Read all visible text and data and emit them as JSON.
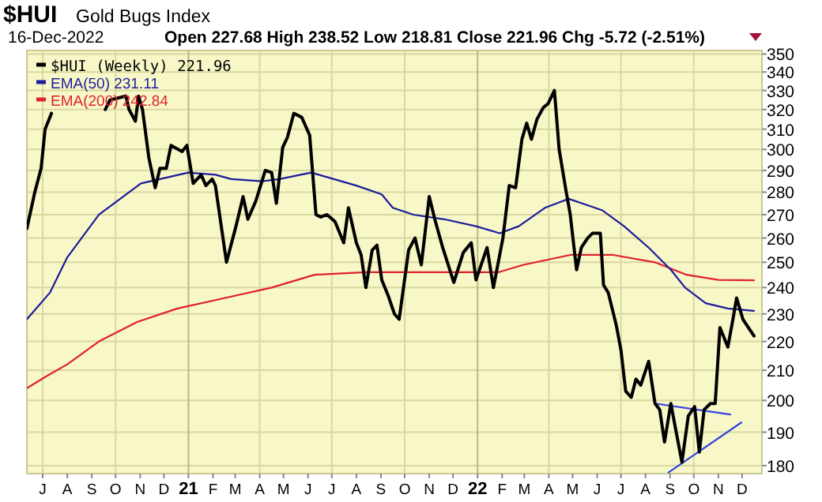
{
  "chart_data": {
    "type": "line",
    "title": "$HUI",
    "subtitle": "Gold Bugs Index",
    "annotations": [
      "16-Dec-2022",
      "Open 227.68  High 238.52  Low 218.81  Close 221.96  Chg -5.72 (-2.51%)"
    ],
    "log": "y",
    "grid": true,
    "legend": "top left",
    "xlim": [
      "2020-06-11",
      "2022-12-26"
    ],
    "ylim": [
      177.7,
      352
    ],
    "yticks": [
      180,
      190,
      200,
      210,
      220,
      230,
      240,
      250,
      260,
      270,
      280,
      290,
      300,
      310,
      320,
      330,
      340,
      350
    ],
    "xticks": [
      {
        "value": "2020-07-01",
        "label": "J"
      },
      {
        "value": "2020-08-01",
        "label": "A"
      },
      {
        "value": "2020-09-01",
        "label": "S"
      },
      {
        "value": "2020-10-01",
        "label": "O"
      },
      {
        "value": "2020-11-01",
        "label": "N"
      },
      {
        "value": "2020-12-01",
        "label": "D"
      },
      {
        "value": "2021-01-01",
        "label": "21"
      },
      {
        "value": "2021-02-01",
        "label": "F"
      },
      {
        "value": "2021-03-01",
        "label": "M"
      },
      {
        "value": "2021-04-01",
        "label": "A"
      },
      {
        "value": "2021-05-01",
        "label": "M"
      },
      {
        "value": "2021-06-01",
        "label": "J"
      },
      {
        "value": "2021-07-01",
        "label": "J"
      },
      {
        "value": "2021-08-01",
        "label": "A"
      },
      {
        "value": "2021-09-01",
        "label": "S"
      },
      {
        "value": "2021-10-01",
        "label": "O"
      },
      {
        "value": "2021-11-01",
        "label": "N"
      },
      {
        "value": "2021-12-01",
        "label": "D"
      },
      {
        "value": "2022-01-01",
        "label": "22"
      },
      {
        "value": "2022-02-01",
        "label": "F"
      },
      {
        "value": "2022-03-01",
        "label": "M"
      },
      {
        "value": "2022-04-01",
        "label": "A"
      },
      {
        "value": "2022-05-01",
        "label": "M"
      },
      {
        "value": "2022-06-01",
        "label": "J"
      },
      {
        "value": "2022-07-01",
        "label": "J"
      },
      {
        "value": "2022-08-01",
        "label": "A"
      },
      {
        "value": "2022-09-01",
        "label": "S"
      },
      {
        "value": "2022-10-01",
        "label": "O"
      },
      {
        "value": "2022-11-01",
        "label": "N"
      },
      {
        "value": "2022-12-01",
        "label": "D"
      }
    ],
    "series": [
      {
        "name": "$HUI (Weekly) 221.96",
        "color": "#000000",
        "x": [
          "2020-06-11",
          "2020-06-21",
          "2020-06-29",
          "2020-07-04",
          "2020-07-12",
          "2020-08-10",
          "2020-09-18",
          "2020-09-24",
          "2020-10-14",
          "2020-10-18",
          "2020-10-26",
          "2020-10-30",
          "2020-11-04",
          "2020-11-12",
          "2020-11-20",
          "2020-11-26",
          "2020-12-04",
          "2020-12-10",
          "2020-12-24",
          "2020-12-30",
          "2021-01-07",
          "2021-01-17",
          "2021-01-23",
          "2021-01-31",
          "2021-02-04",
          "2021-02-18",
          "2021-03-02",
          "2021-03-11",
          "2021-03-17",
          "2021-03-27",
          "2021-04-08",
          "2021-04-16",
          "2021-04-22",
          "2021-04-30",
          "2021-05-06",
          "2021-05-14",
          "2021-05-24",
          "2021-06-03",
          "2021-06-11",
          "2021-06-17",
          "2021-06-25",
          "2021-07-05",
          "2021-07-16",
          "2021-07-22",
          "2021-08-01",
          "2021-08-07",
          "2021-08-13",
          "2021-08-21",
          "2021-08-27",
          "2021-09-02",
          "2021-09-10",
          "2021-09-18",
          "2021-09-24",
          "2021-10-06",
          "2021-10-14",
          "2021-10-22",
          "2021-11-01",
          "2021-11-08",
          "2021-11-18",
          "2021-12-02",
          "2021-12-14",
          "2021-12-24",
          "2021-12-30",
          "2022-01-13",
          "2022-01-21",
          "2022-02-02",
          "2022-02-10",
          "2022-02-18",
          "2022-02-26",
          "2022-03-04",
          "2022-03-10",
          "2022-03-17",
          "2022-03-25",
          "2022-03-31",
          "2022-04-08",
          "2022-04-14",
          "2022-04-22",
          "2022-04-28",
          "2022-05-06",
          "2022-05-12",
          "2022-05-20",
          "2022-05-26",
          "2022-06-05",
          "2022-06-09",
          "2022-06-15",
          "2022-06-25",
          "2022-07-01",
          "2022-07-07",
          "2022-07-14",
          "2022-07-20",
          "2022-07-26",
          "2022-08-05",
          "2022-08-13",
          "2022-08-19",
          "2022-08-25",
          "2022-09-02",
          "2022-09-08",
          "2022-09-16",
          "2022-09-24",
          "2022-10-02",
          "2022-10-08",
          "2022-10-14",
          "2022-10-22",
          "2022-10-28",
          "2022-11-03",
          "2022-11-13",
          "2022-11-20",
          "2022-11-24",
          "2022-12-02",
          "2022-12-16"
        ],
        "values": [
          264,
          280,
          291,
          310,
          318,
          null,
          320,
          325,
          327,
          320,
          314,
          327,
          320,
          296,
          282,
          291,
          291,
          302,
          299,
          302,
          284,
          288,
          283,
          286,
          283,
          250,
          265,
          278,
          268,
          276,
          290,
          289,
          275,
          301,
          306,
          318,
          316,
          307,
          270,
          269,
          270,
          267,
          258,
          273,
          258,
          253,
          240,
          255,
          257,
          243,
          237,
          230,
          228,
          255,
          260,
          249,
          278,
          268,
          256,
          242,
          254,
          258,
          243,
          256,
          240,
          260,
          283,
          282,
          305,
          313,
          305,
          315,
          321,
          323,
          330,
          300,
          282,
          270,
          247,
          256,
          260,
          262,
          262,
          241,
          238,
          226,
          217,
          203,
          201,
          207,
          205,
          213,
          199,
          197,
          187,
          199,
          191,
          181,
          195,
          198,
          184,
          197,
          199,
          199,
          225,
          218,
          229,
          236,
          228,
          221.96
        ]
      },
      {
        "name": "EMA(50) 231.11",
        "color": "#1c1c9c",
        "x": [
          "2020-06-11",
          "2020-07-10",
          "2020-08-01",
          "2020-09-10",
          "2020-11-02",
          "2021-01-01",
          "2021-02-04",
          "2021-02-24",
          "2021-04-04",
          "2021-04-26",
          "2021-06-05",
          "2021-08-01",
          "2021-09-02",
          "2021-09-16",
          "2021-10-12",
          "2021-11-20",
          "2021-12-30",
          "2022-01-29",
          "2022-02-22",
          "2022-03-27",
          "2022-04-26",
          "2022-06-07",
          "2022-07-05",
          "2022-08-05",
          "2022-09-02",
          "2022-09-20",
          "2022-10-16",
          "2022-11-13",
          "2022-12-16"
        ],
        "values": [
          228,
          238,
          252,
          270,
          284,
          289,
          288,
          286,
          285,
          286,
          289,
          283,
          279,
          273,
          270,
          268,
          265,
          262,
          265,
          273,
          277,
          272,
          265,
          256,
          247,
          240,
          234,
          232,
          231.11
        ]
      },
      {
        "name": "EMA(200) 242.84",
        "color": "#e0202f",
        "x": [
          "2020-06-11",
          "2020-07-06",
          "2020-08-01",
          "2020-09-10",
          "2020-10-28",
          "2020-12-18",
          "2021-02-16",
          "2021-04-16",
          "2021-06-09",
          "2021-08-13",
          "2021-10-24",
          "2022-01-27",
          "2022-02-28",
          "2022-04-28",
          "2022-06-21",
          "2022-08-13",
          "2022-09-22",
          "2022-11-01",
          "2022-12-16"
        ],
        "values": [
          204,
          208,
          212,
          220,
          227,
          232,
          236,
          240,
          245,
          246,
          246,
          246,
          249,
          253,
          253,
          250,
          245,
          243,
          242.84
        ]
      },
      {
        "color": "#3344dd",
        "x": [
          "2022-08-13",
          "2022-11-16"
        ],
        "values": [
          199,
          195.5
        ]
      },
      {
        "color": "#3344dd",
        "x": [
          "2022-08-30",
          "2022-11-30"
        ],
        "values": [
          178,
          193
        ]
      }
    ]
  }
}
